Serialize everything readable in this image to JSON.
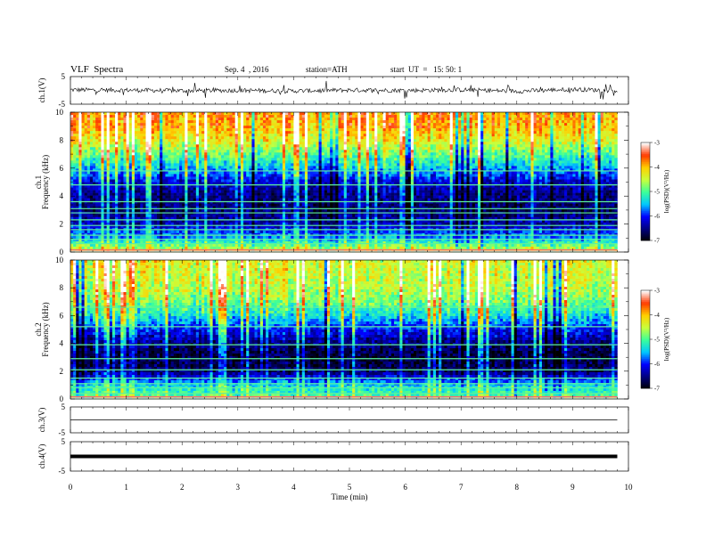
{
  "header": {
    "title": "VLF  Spectra",
    "date": "Sep. 4  , 2016",
    "station": "station=ATH",
    "start": "start  UT  =   15: 50: 1"
  },
  "chart_data": [
    {
      "type": "line",
      "panel": "ch1-waveform",
      "ylabel": "ch.1(V)",
      "ylim": [
        -5,
        5
      ],
      "y_ticks": [
        "5",
        "-5"
      ],
      "series": [
        {
          "x": [
            0,
            1,
            2,
            3,
            4,
            5,
            6,
            7,
            8,
            9,
            9.8
          ],
          "y": [
            0.2,
            0.1,
            -0.1,
            0.0,
            -0.2,
            0.1,
            0.0,
            0.2,
            -0.3,
            0.4,
            -0.1
          ]
        }
      ],
      "color": "#000000"
    },
    {
      "type": "heatmap",
      "panel": "ch1-spectrogram",
      "ylabel_top": "ch.1",
      "ylabel": "Frequency  (kHz)",
      "ylim": [
        0,
        10
      ],
      "y_ticks": [
        "0",
        "2",
        "4",
        "6",
        "8",
        "10"
      ],
      "x_range": [
        0,
        9.8
      ],
      "colorbar": {
        "label": "log(PSD)(V²/Hz)",
        "range": [
          -7,
          -3
        ],
        "ticks": [
          "-3",
          "-4",
          "-5",
          "-6",
          "-7"
        ]
      },
      "horizontal_lines_kHz": [
        0.6,
        0.9,
        1.2,
        1.6,
        1.9,
        2.3,
        2.8,
        3.1,
        3.6,
        4.8,
        5.8
      ],
      "band_profile": [
        {
          "f_kHz": 0.3,
          "logpsd": -4.6
        },
        {
          "f_kHz": 1.0,
          "logpsd": -5.6
        },
        {
          "f_kHz": 2.0,
          "logpsd": -6.3
        },
        {
          "f_kHz": 3.0,
          "logpsd": -6.6
        },
        {
          "f_kHz": 4.0,
          "logpsd": -6.5
        },
        {
          "f_kHz": 5.0,
          "logpsd": -6.2
        },
        {
          "f_kHz": 6.0,
          "logpsd": -5.5
        },
        {
          "f_kHz": 7.0,
          "logpsd": -4.9
        },
        {
          "f_kHz": 8.0,
          "logpsd": -4.3
        },
        {
          "f_kHz": 9.0,
          "logpsd": -3.9
        },
        {
          "f_kHz": 10.0,
          "logpsd": -3.8
        }
      ]
    },
    {
      "type": "heatmap",
      "panel": "ch2-spectrogram",
      "ylabel_top": "ch.2",
      "ylabel": "Frequency  (kHz)",
      "ylim": [
        0,
        10
      ],
      "y_ticks": [
        "0",
        "2",
        "4",
        "6",
        "8",
        "10"
      ],
      "x_range": [
        0,
        9.8
      ],
      "colorbar": {
        "label": "log(PSD)(V²/Hz)",
        "range": [
          -7,
          -3
        ],
        "ticks": [
          "-3",
          "-4",
          "-5",
          "-6",
          "-7"
        ]
      },
      "horizontal_lines_kHz": [
        0.4,
        0.8,
        1.1,
        1.5,
        2.1,
        2.9,
        3.9,
        5.2,
        6.6
      ],
      "band_profile": [
        {
          "f_kHz": 0.3,
          "logpsd": -5.0
        },
        {
          "f_kHz": 1.0,
          "logpsd": -5.4
        },
        {
          "f_kHz": 2.0,
          "logpsd": -6.6
        },
        {
          "f_kHz": 3.0,
          "logpsd": -6.8
        },
        {
          "f_kHz": 4.0,
          "logpsd": -6.5
        },
        {
          "f_kHz": 5.0,
          "logpsd": -6.0
        },
        {
          "f_kHz": 6.0,
          "logpsd": -5.3
        },
        {
          "f_kHz": 7.0,
          "logpsd": -4.8
        },
        {
          "f_kHz": 8.0,
          "logpsd": -4.5
        },
        {
          "f_kHz": 9.0,
          "logpsd": -4.4
        },
        {
          "f_kHz": 10.0,
          "logpsd": -4.3
        }
      ]
    },
    {
      "type": "line",
      "panel": "ch3-waveform",
      "ylabel": "ch.3(V)",
      "ylim": [
        -5,
        5
      ],
      "y_ticks": [
        "5",
        "-5"
      ],
      "series": [
        {
          "x": [
            0,
            9.8
          ],
          "y": [
            0,
            0
          ]
        }
      ],
      "color": "#000000"
    },
    {
      "type": "line",
      "panel": "ch4-waveform",
      "ylabel": "ch.4(V)",
      "ylim": [
        -5,
        5
      ],
      "y_ticks": [
        "5",
        "-5"
      ],
      "series": [
        {
          "x": [
            0,
            9.8
          ],
          "y": [
            0,
            0
          ]
        }
      ],
      "color": "#000000"
    }
  ],
  "x_axis": {
    "label": "Time  (min)",
    "range": [
      0,
      10
    ],
    "ticks": [
      "0",
      "1",
      "2",
      "3",
      "4",
      "5",
      "6",
      "7",
      "8",
      "9",
      "10"
    ]
  },
  "colors": {
    "colormap": [
      "#000000",
      "#000080",
      "#0000ff",
      "#00c8ff",
      "#3cff9a",
      "#c8ff3c",
      "#ffd000",
      "#ff3a00",
      "#ffffff"
    ]
  }
}
